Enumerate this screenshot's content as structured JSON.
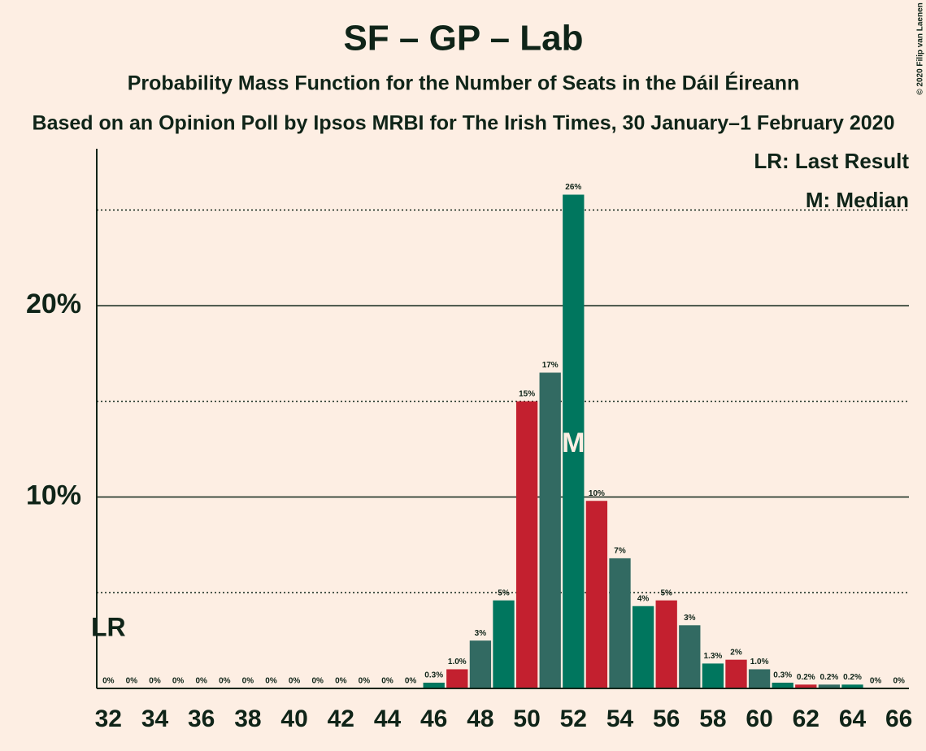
{
  "chart_data": {
    "type": "bar",
    "title": "SF – GP – Lab",
    "subtitle": "Probability Mass Function for the Number of Seats in the Dáil Éireann",
    "subtitle2": "Based on an Opinion Poll by Ipsos MRBI for The Irish Times, 30 January–1 February 2020",
    "credit": "© 2020 Filip van Laenen",
    "legend_lr": "LR: Last Result",
    "legend_median": "M: Median",
    "lr_label": "LR",
    "last_result": 32,
    "median_label": "M",
    "median": 52,
    "x": [
      32,
      33,
      34,
      35,
      36,
      37,
      38,
      39,
      40,
      41,
      42,
      43,
      44,
      45,
      46,
      47,
      48,
      49,
      50,
      51,
      52,
      53,
      54,
      55,
      56,
      57,
      58,
      59,
      60,
      61,
      62,
      63,
      64,
      65,
      66
    ],
    "values": [
      0,
      0,
      0,
      0,
      0,
      0,
      0,
      0,
      0,
      0,
      0,
      0,
      0,
      0,
      0.3,
      1.0,
      2.5,
      4.6,
      15,
      16.5,
      25.8,
      9.8,
      6.8,
      4.3,
      4.6,
      3.3,
      1.3,
      1.5,
      1.0,
      0.3,
      0.2,
      0.2,
      0.2,
      0,
      0
    ],
    "value_labels": [
      "0%",
      "0%",
      "0%",
      "0%",
      "0%",
      "0%",
      "0%",
      "0%",
      "0%",
      "0%",
      "0%",
      "0%",
      "0%",
      "0%",
      "0.3%",
      "1.0%",
      "3%",
      "5%",
      "15%",
      "17%",
      "26%",
      "10%",
      "7%",
      "4%",
      "5%",
      "3%",
      "1.3%",
      "2%",
      "1.0%",
      "0.3%",
      "0.2%",
      "0.2%",
      "0.2%",
      "0%",
      "0%"
    ],
    "colors": [
      "#c3202f",
      "#326a62",
      "#00765e",
      "#c3202f",
      "#326a62",
      "#00765e",
      "#c3202f",
      "#326a62",
      "#00765e",
      "#c3202f",
      "#326a62",
      "#00765e",
      "#c3202f",
      "#326a62",
      "#00765e",
      "#c3202f",
      "#326a62",
      "#00765e",
      "#c3202f",
      "#326a62",
      "#00765e",
      "#c3202f",
      "#326a62",
      "#00765e",
      "#c3202f",
      "#326a62",
      "#00765e",
      "#c3202f",
      "#326a62",
      "#00765e",
      "#c3202f",
      "#326a62",
      "#00765e",
      "#c3202f",
      "#326a62"
    ],
    "xlim": [
      31.5,
      66.5
    ],
    "xticks": [
      32,
      34,
      36,
      38,
      40,
      42,
      44,
      46,
      48,
      50,
      52,
      54,
      56,
      58,
      60,
      62,
      64,
      66
    ],
    "ylim": [
      0,
      28.2
    ],
    "yticks": [
      {
        "value": 10,
        "label": "10%"
      },
      {
        "value": 20,
        "label": "20%"
      }
    ],
    "minor_yticks": [
      5,
      15,
      25
    ],
    "grid": true
  }
}
